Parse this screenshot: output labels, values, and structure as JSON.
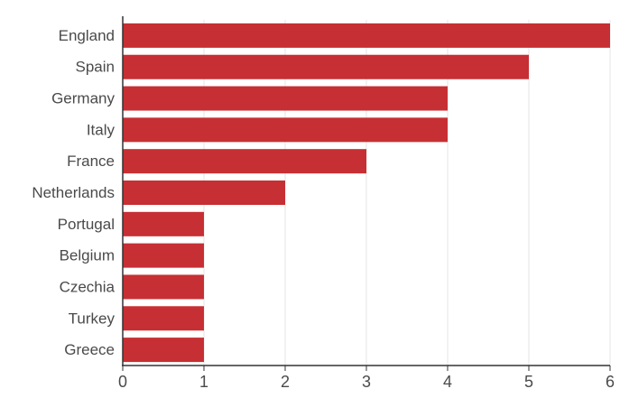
{
  "chart_data": {
    "type": "bar",
    "orientation": "horizontal",
    "title": "",
    "xlabel": "",
    "ylabel": "",
    "categories": [
      "England",
      "Spain",
      "Germany",
      "Italy",
      "France",
      "Netherlands",
      "Portugal",
      "Belgium",
      "Czechia",
      "Turkey",
      "Greece"
    ],
    "values": [
      6,
      5,
      4,
      4,
      3,
      2,
      1,
      1,
      1,
      1,
      1
    ],
    "xlim": [
      0,
      6
    ],
    "xticks": [
      0,
      1,
      2,
      3,
      4,
      5,
      6
    ],
    "grid": "vertical",
    "legend": "none",
    "bar_color": "#c62f33"
  }
}
